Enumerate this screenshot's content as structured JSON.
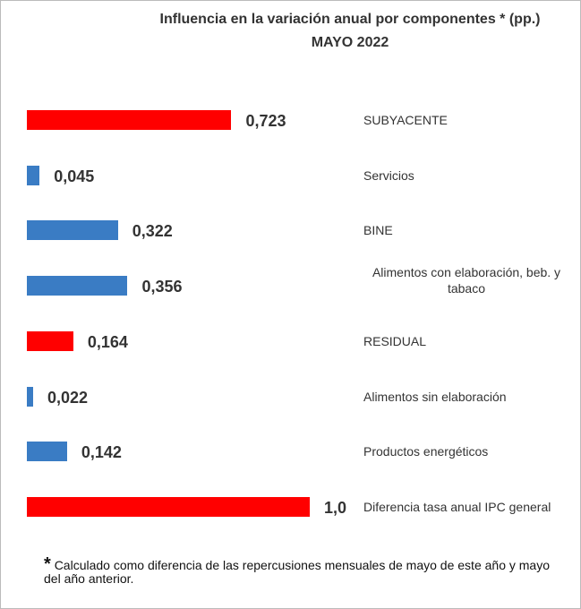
{
  "chart_data": {
    "type": "bar",
    "orientation": "horizontal",
    "title": "Influencia en la variación anual por componentes * (pp.)",
    "subtitle": "MAYO 2022",
    "categories": [
      "SUBYACENTE",
      "Servicios",
      "BINE",
      "Alimentos con elaboración, beb. y tabaco",
      "RESIDUAL",
      "Alimentos sin elaboración",
      "Productos energéticos",
      "Diferencia tasa anual IPC general"
    ],
    "values": [
      0.723,
      0.045,
      0.322,
      0.356,
      0.164,
      0.022,
      0.142,
      1.0
    ],
    "value_labels": [
      "0,723",
      "0,045",
      "0,322",
      "0,356",
      "0,164",
      "0,022",
      "0,142",
      "1,0"
    ],
    "colors": [
      "#ff0000",
      "#3a7cc4",
      "#3a7cc4",
      "#3a7cc4",
      "#ff0000",
      "#3a7cc4",
      "#3a7cc4",
      "#ff0000"
    ],
    "footnote_mark": "*",
    "footnote": "Calculado como diferencia de las repercusiones mensuales de mayo de este año y mayo del año anterior."
  }
}
